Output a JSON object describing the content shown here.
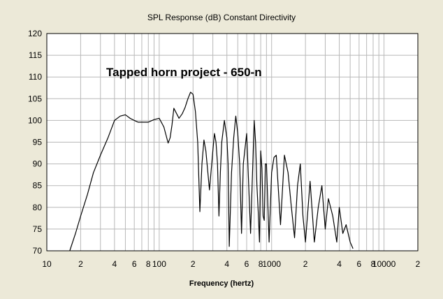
{
  "chart_data": {
    "type": "line",
    "title": "SPL Response (dB)   Constant Directivity",
    "annotation": "Tapped horn project - 650-n",
    "xlabel": "Frequency (hertz)",
    "ylabel": "",
    "x_scale": "log",
    "xlim": [
      10,
      20000
    ],
    "ylim": [
      70,
      120
    ],
    "grid": true,
    "y_ticks": [
      70,
      75,
      80,
      85,
      90,
      95,
      100,
      105,
      110,
      115,
      120
    ],
    "x_ticks": [
      {
        "value": 10,
        "label": "10"
      },
      {
        "value": 20,
        "label": "2"
      },
      {
        "value": 40,
        "label": "4"
      },
      {
        "value": 60,
        "label": "6"
      },
      {
        "value": 80,
        "label": "8"
      },
      {
        "value": 100,
        "label": "100"
      },
      {
        "value": 200,
        "label": "2"
      },
      {
        "value": 400,
        "label": "4"
      },
      {
        "value": 600,
        "label": "6"
      },
      {
        "value": 800,
        "label": "8"
      },
      {
        "value": 1000,
        "label": "1000"
      },
      {
        "value": 2000,
        "label": "2"
      },
      {
        "value": 4000,
        "label": "4"
      },
      {
        "value": 6000,
        "label": "6"
      },
      {
        "value": 8000,
        "label": "8"
      },
      {
        "value": 10000,
        "label": "10000"
      },
      {
        "value": 20000,
        "label": "2"
      }
    ],
    "series": [
      {
        "color": "#000000",
        "x": [
          16,
          18,
          20,
          23,
          26,
          30,
          35,
          40,
          45,
          50,
          55,
          60,
          65,
          70,
          80,
          90,
          100,
          110,
          120,
          125,
          130,
          135,
          140,
          150,
          160,
          170,
          180,
          190,
          200,
          210,
          220,
          230,
          240,
          250,
          260,
          280,
          300,
          310,
          320,
          330,
          340,
          350,
          360,
          380,
          400,
          410,
          420,
          440,
          460,
          480,
          500,
          520,
          540,
          560,
          600,
          650,
          700,
          720,
          740,
          760,
          780,
          800,
          820,
          840,
          860,
          880,
          900,
          950,
          1000,
          1050,
          1100,
          1200,
          1300,
          1400,
          1500,
          1600,
          1700,
          1800,
          1900,
          2000,
          2200,
          2400,
          2600,
          2800,
          3000,
          3200,
          3500,
          3800,
          4000,
          4300,
          4600,
          5000,
          5300
        ],
        "y": [
          70,
          74,
          78,
          83,
          88,
          92,
          96,
          100,
          101,
          101.3,
          100.5,
          100,
          99.6,
          99.6,
          99.6,
          100.2,
          100.5,
          98.5,
          94.8,
          96,
          99,
          102.8,
          102,
          100.5,
          101.5,
          103,
          105,
          106.5,
          106,
          102,
          95,
          79,
          90,
          95.5,
          93,
          84,
          93,
          97,
          95,
          90,
          78,
          88,
          95,
          100,
          96,
          90,
          71,
          88,
          96,
          101,
          97,
          90,
          74,
          90,
          97,
          74,
          100,
          95,
          85,
          79,
          72,
          93,
          89,
          78,
          77,
          90,
          90,
          72,
          88,
          91.5,
          92,
          76,
          92,
          88,
          80,
          73,
          85,
          90,
          78,
          72,
          86,
          72,
          80,
          85,
          75,
          82,
          78,
          72,
          80,
          74,
          76,
          72,
          70.5
        ]
      }
    ]
  }
}
